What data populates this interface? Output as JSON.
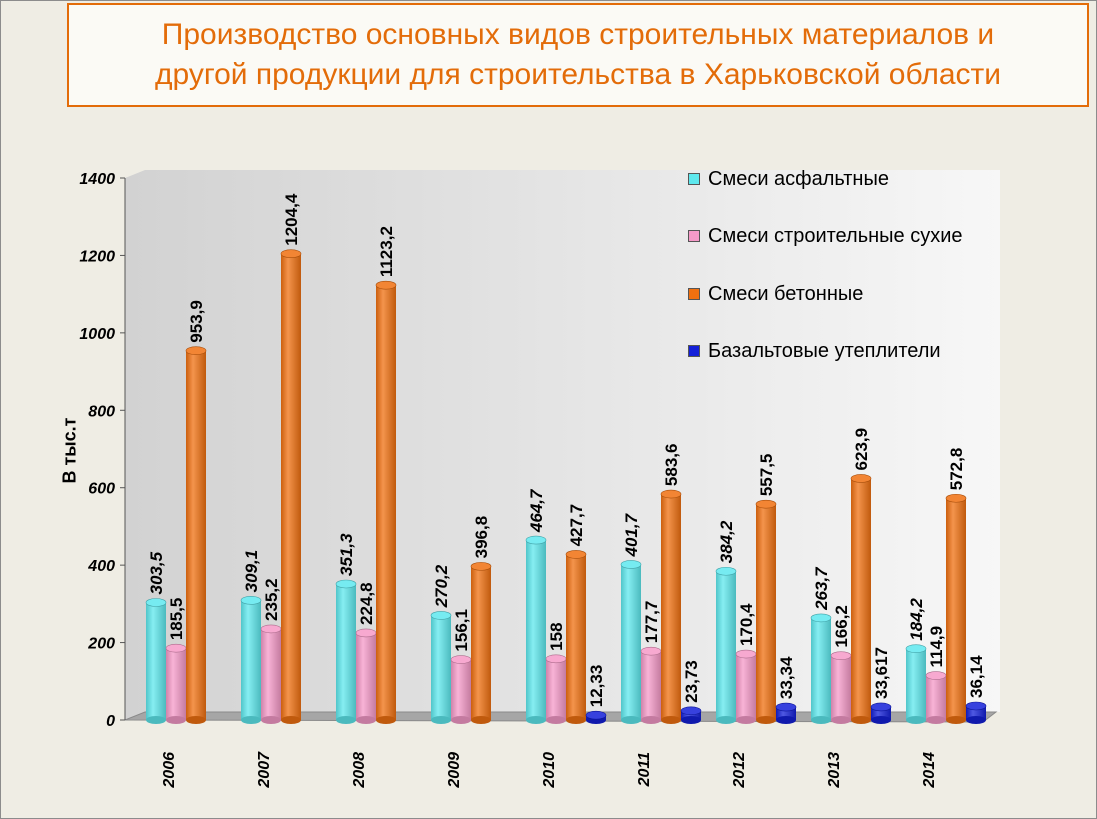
{
  "title": "Производство основных видов строительных материалов и\nдругой продукции для строительства в Харьковской области",
  "chart_data": {
    "type": "bar",
    "title": "Производство основных видов строительных материалов и другой продукции для строительства в Харьковской области",
    "ylabel": "В тыс.т",
    "xlabel": "",
    "ylim": [
      0,
      1400
    ],
    "yticks": [
      "0",
      "200",
      "400",
      "600",
      "800",
      "1000",
      "1200",
      "1400"
    ],
    "grid": false,
    "legend_position": "top-right",
    "categories": [
      "2006",
      "2007",
      "2008",
      "2009",
      "2010",
      "2011",
      "2012",
      "2013",
      "2014"
    ],
    "series": [
      {
        "name": "Смеси асфальтные",
        "color": "#5ee8ee",
        "values": [
          303.5,
          309.1,
          351.3,
          270.2,
          464.7,
          401.7,
          384.2,
          263.7,
          184.2
        ],
        "labels": [
          "303,5",
          "309,1",
          "351,3",
          "270,2",
          "464,7",
          "401,7",
          "384,2",
          "263,7",
          "184,2"
        ]
      },
      {
        "name": "Смеси строительные сухие",
        "color": "#f59ac8",
        "values": [
          185.5,
          235.2,
          224.8,
          156.1,
          158,
          177.7,
          170.4,
          166.2,
          114.9
        ],
        "labels": [
          "185,5",
          "235,2",
          "224,8",
          "156,1",
          "158",
          "177,7",
          "170,4",
          "166,2",
          "114,9"
        ]
      },
      {
        "name": "Смеси бетонные",
        "color": "#f07010",
        "values": [
          953.9,
          1204.4,
          1123.2,
          396.8,
          427.7,
          583.6,
          557.5,
          623.9,
          572.8
        ],
        "labels": [
          "953,9",
          "1204,4",
          "1123,2",
          "396,8",
          "427,7",
          "583,6",
          "557,5",
          "623,9",
          "572,8"
        ]
      },
      {
        "name": "Базальтовые утеплители",
        "color": "#1420d8",
        "values": [
          null,
          null,
          null,
          null,
          12.33,
          23.73,
          33.34,
          33.617,
          36.14
        ],
        "labels": [
          "",
          "",
          "",
          "",
          "12,33",
          "23,73",
          "33,34",
          "33,617",
          "36,14"
        ]
      }
    ]
  }
}
